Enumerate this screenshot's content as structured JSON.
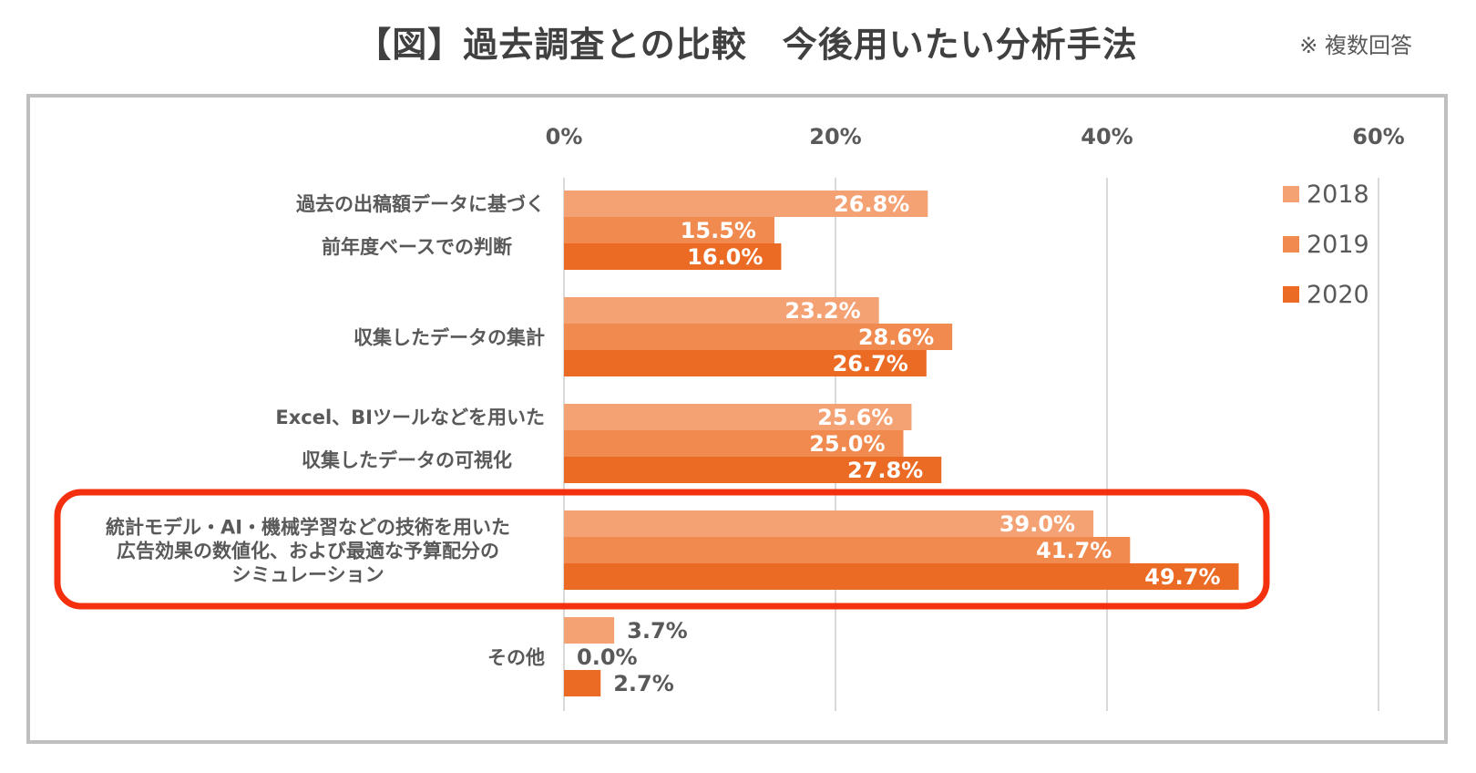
{
  "title": "【図】過去調査との比較　今後用いたい分析手法",
  "note": "※ 複数回答",
  "chart_data": {
    "type": "bar",
    "orientation": "horizontal",
    "title": "【図】過去調査との比較　今後用いたい分析手法",
    "xlim": [
      0,
      60
    ],
    "xticks": [
      "0%",
      "20%",
      "40%",
      "60%"
    ],
    "xtick_values": [
      0,
      20,
      40,
      60
    ],
    "grid": true,
    "legend_position": "right",
    "categories": [
      [
        "過去の出稿額データに基づく",
        "前年度ベースでの判断"
      ],
      [
        "収集したデータの集計"
      ],
      [
        "Excel、BIツールなどを用いた",
        "収集したデータの可視化"
      ],
      [
        "統計モデル・AI・機械学習などの技術を用いた",
        "広告効果の数値化、および最適な予算配分の",
        "シミュレーション"
      ],
      [
        "その他"
      ]
    ],
    "highlighted_category_index": 3,
    "highlight_color": "#f5300f",
    "series": [
      {
        "name": "2018",
        "color": "#f4a274",
        "values": [
          26.8,
          23.2,
          25.6,
          39.0,
          3.7
        ],
        "labels": [
          "26.8%",
          "23.2%",
          "25.6%",
          "39.0%",
          "3.7%"
        ]
      },
      {
        "name": "2019",
        "color": "#f08a4f",
        "values": [
          15.5,
          28.6,
          25.0,
          41.7,
          0.0
        ],
        "labels": [
          "15.5%",
          "28.6%",
          "25.0%",
          "41.7%",
          "0.0%"
        ]
      },
      {
        "name": "2020",
        "color": "#eb6a24",
        "values": [
          16.0,
          26.7,
          27.8,
          49.7,
          2.7
        ],
        "labels": [
          "16.0%",
          "26.7%",
          "27.8%",
          "49.7%",
          "2.7%"
        ]
      }
    ]
  }
}
